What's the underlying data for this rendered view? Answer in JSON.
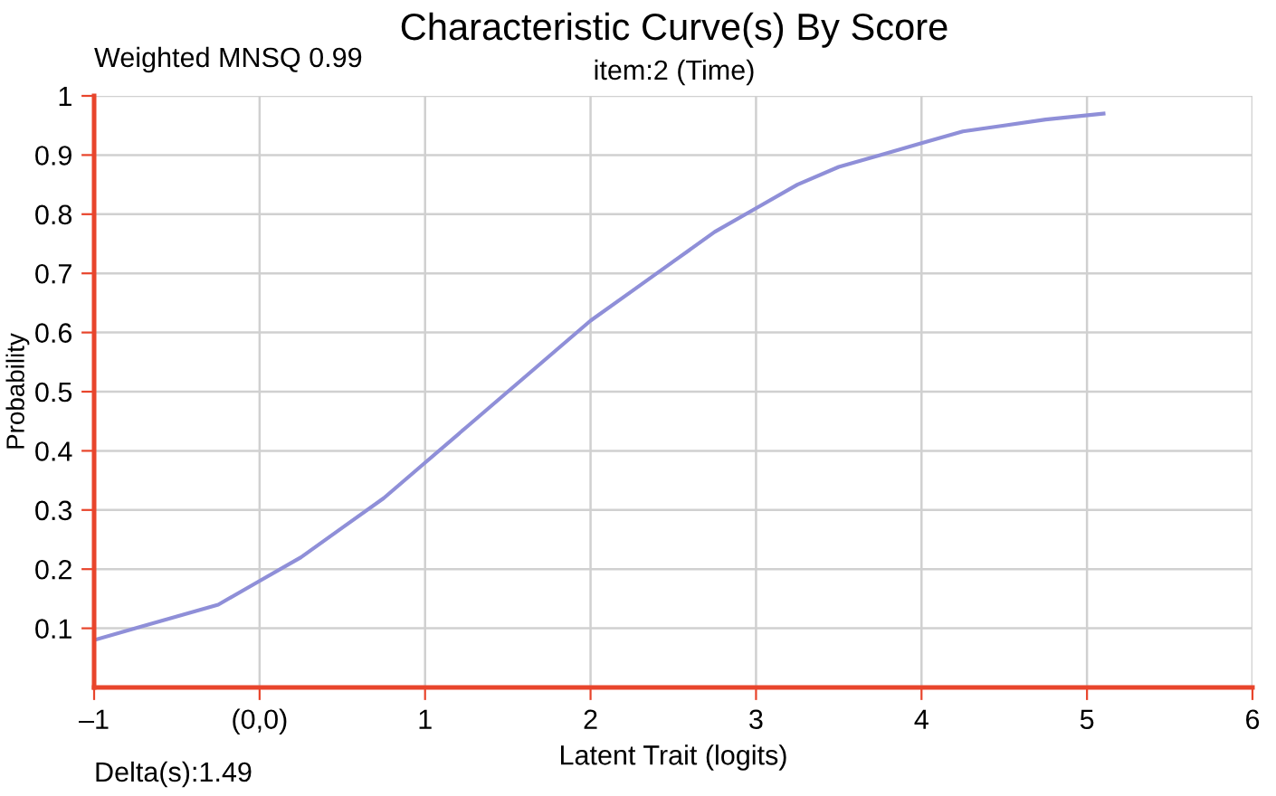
{
  "chart_data": {
    "type": "line",
    "title": "Characteristic Curve(s) By Score",
    "subtitle": "item:2 (Time)",
    "xlabel": "Latent Trait (logits)",
    "ylabel": "Probability",
    "annotations": [
      "Weighted MNSQ 0.99",
      "Delta(s):1.49"
    ],
    "series": [
      {
        "color": "#8f8fd8",
        "x": [
          -1,
          -0.75,
          -0.5,
          -0.25,
          0,
          0.25,
          0.5,
          0.75,
          1,
          1.25,
          1.5,
          1.75,
          2,
          2.25,
          2.5,
          2.75,
          3,
          3.25,
          3.5,
          3.75,
          4,
          4.25,
          4.5,
          4.75,
          5.1
        ],
        "values": [
          0.08,
          0.1,
          0.12,
          0.14,
          0.18,
          0.22,
          0.27,
          0.32,
          0.38,
          0.44,
          0.5,
          0.56,
          0.62,
          0.67,
          0.72,
          0.77,
          0.81,
          0.85,
          0.88,
          0.9,
          0.92,
          0.94,
          0.95,
          0.96,
          0.97
        ]
      }
    ],
    "xlim": [
      -1,
      6
    ],
    "xticks": [
      {
        "value": -1,
        "label": "–1"
      },
      {
        "value": 0,
        "label": "(0,0)"
      },
      1,
      2,
      3,
      4,
      5,
      6
    ],
    "ylim": [
      0,
      1
    ],
    "yticks": [
      0.1,
      0.2,
      0.3,
      0.4,
      0.5,
      0.6,
      0.7,
      0.8,
      0.9,
      1
    ],
    "grid": true,
    "legend": false,
    "marker": "none",
    "line_style": "solid"
  }
}
